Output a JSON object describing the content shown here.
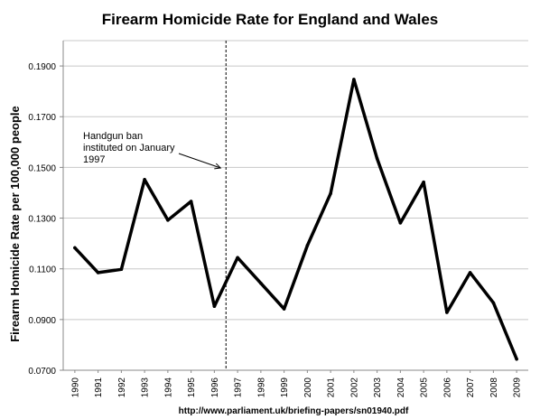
{
  "chart_data": {
    "type": "line",
    "title": "Firearm Homicide Rate for England and Wales",
    "ylabel": "Firearm Homicide Rate per 100,000 people",
    "xlabel": "",
    "categories": [
      "1990",
      "1991",
      "1992",
      "1993",
      "1994",
      "1995",
      "1996",
      "1997",
      "1998",
      "1999",
      "2000",
      "2001",
      "2002",
      "2003",
      "2004",
      "2005",
      "2006",
      "2007",
      "2008",
      "2009"
    ],
    "series": [
      {
        "values": [
          0.1183,
          0.1085,
          0.1098,
          0.1452,
          0.1292,
          0.1366,
          0.0952,
          0.1144,
          0.1043,
          0.0942,
          0.1192,
          0.1397,
          0.1847,
          0.1535,
          0.1281,
          0.1442,
          0.0928,
          0.1085,
          0.0966,
          0.0744
        ],
        "color": "#000000"
      }
    ],
    "yticks": [
      "0.0700",
      "0.0900",
      "0.1100",
      "0.1300",
      "0.1500",
      "0.1700",
      "0.1900"
    ],
    "ylim": [
      0.07,
      0.2
    ],
    "grid": true,
    "annotation": {
      "lines": [
        "Handgun ban",
        "instituted on January",
        "1997"
      ],
      "marker_between": [
        "1996",
        "1997"
      ]
    },
    "source": "http://www.parliament.uk/briefing-papers/sn01940.pdf"
  }
}
